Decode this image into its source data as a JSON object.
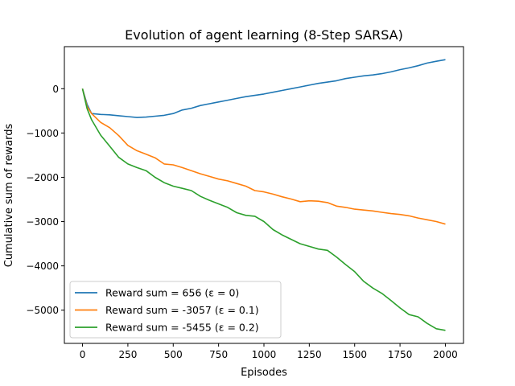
{
  "chart_data": {
    "type": "line",
    "title": "Evolution of agent learning (8-Step SARSA)",
    "xlabel": "Episodes",
    "ylabel": "Cumulative sum of rewards",
    "xlim": [
      -100,
      2100
    ],
    "ylim": [
      -5750,
      950
    ],
    "xticks": [
      0,
      250,
      500,
      750,
      1000,
      1250,
      1500,
      1750,
      2000
    ],
    "xtick_labels": [
      "0",
      "250",
      "500",
      "750",
      "1000",
      "1250",
      "1500",
      "1750",
      "2000"
    ],
    "yticks": [
      -5000,
      -4000,
      -3000,
      -2000,
      -1000,
      0
    ],
    "ytick_labels": [
      "−5000",
      "−4000",
      "−3000",
      "−2000",
      "−1000",
      "0"
    ],
    "grid": false,
    "legend_position": "lower-left",
    "series": [
      {
        "name": "Reward sum = 656 (ε = 0)",
        "color": "#1f77b4",
        "x": [
          0,
          25,
          50,
          100,
          150,
          200,
          250,
          300,
          350,
          400,
          450,
          500,
          550,
          600,
          650,
          700,
          750,
          800,
          850,
          900,
          950,
          1000,
          1050,
          1100,
          1150,
          1200,
          1250,
          1300,
          1350,
          1400,
          1450,
          1500,
          1550,
          1600,
          1650,
          1700,
          1750,
          1800,
          1850,
          1900,
          1950,
          2000
        ],
        "y": [
          0,
          -350,
          -560,
          -580,
          -590,
          -610,
          -630,
          -650,
          -640,
          -620,
          -600,
          -560,
          -480,
          -440,
          -380,
          -340,
          -300,
          -260,
          -220,
          -180,
          -150,
          -120,
          -80,
          -40,
          0,
          40,
          80,
          120,
          150,
          180,
          230,
          260,
          290,
          310,
          340,
          380,
          430,
          470,
          520,
          580,
          620,
          656
        ]
      },
      {
        "name": "Reward sum = -3057 (ε = 0.1)",
        "color": "#ff7f0e",
        "x": [
          0,
          25,
          50,
          100,
          150,
          200,
          250,
          300,
          350,
          400,
          450,
          500,
          550,
          600,
          650,
          700,
          750,
          800,
          850,
          900,
          950,
          1000,
          1050,
          1100,
          1150,
          1200,
          1250,
          1300,
          1350,
          1400,
          1450,
          1500,
          1550,
          1600,
          1650,
          1700,
          1750,
          1800,
          1850,
          1900,
          1950,
          2000
        ],
        "y": [
          0,
          -400,
          -560,
          -760,
          -880,
          -1060,
          -1280,
          -1400,
          -1480,
          -1560,
          -1700,
          -1720,
          -1780,
          -1850,
          -1920,
          -1980,
          -2040,
          -2080,
          -2140,
          -2200,
          -2300,
          -2330,
          -2380,
          -2440,
          -2490,
          -2550,
          -2530,
          -2540,
          -2570,
          -2650,
          -2680,
          -2720,
          -2740,
          -2760,
          -2790,
          -2820,
          -2840,
          -2870,
          -2920,
          -2960,
          -3000,
          -3057
        ]
      },
      {
        "name": "Reward sum = -5455 (ε = 0.2)",
        "color": "#2ca02c",
        "x": [
          0,
          25,
          50,
          100,
          150,
          200,
          250,
          300,
          350,
          400,
          450,
          500,
          550,
          600,
          650,
          700,
          750,
          800,
          850,
          900,
          950,
          1000,
          1050,
          1100,
          1150,
          1200,
          1250,
          1300,
          1350,
          1400,
          1450,
          1500,
          1550,
          1600,
          1650,
          1700,
          1750,
          1800,
          1850,
          1900,
          1950,
          2000
        ],
        "y": [
          0,
          -450,
          -700,
          -1050,
          -1300,
          -1550,
          -1700,
          -1780,
          -1850,
          -2000,
          -2120,
          -2200,
          -2250,
          -2300,
          -2430,
          -2520,
          -2600,
          -2680,
          -2800,
          -2860,
          -2880,
          -3000,
          -3180,
          -3300,
          -3400,
          -3500,
          -3560,
          -3620,
          -3650,
          -3800,
          -3970,
          -4130,
          -4350,
          -4500,
          -4620,
          -4780,
          -4950,
          -5100,
          -5150,
          -5300,
          -5420,
          -5455
        ]
      }
    ]
  }
}
